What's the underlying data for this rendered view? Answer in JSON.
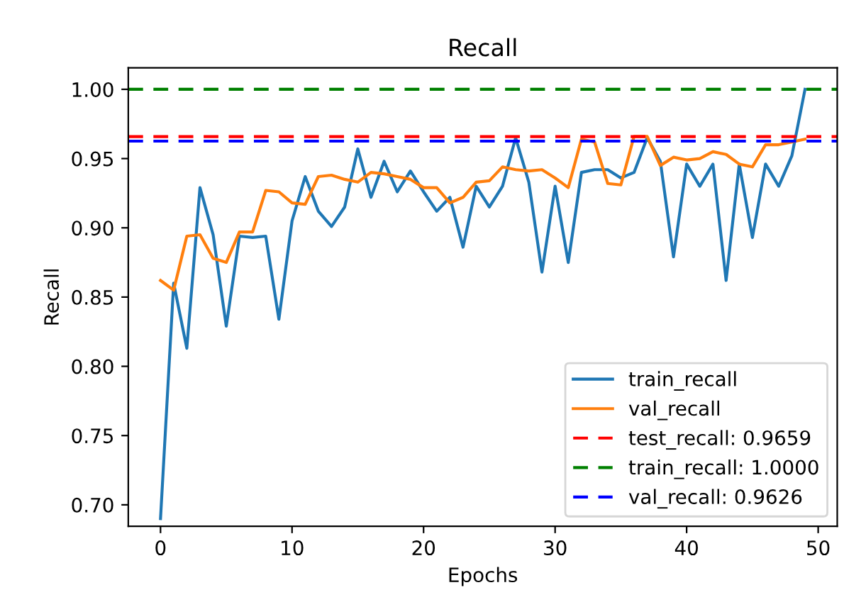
{
  "chart_data": {
    "type": "line",
    "title": "Recall",
    "xlabel": "Epochs",
    "ylabel": "Recall",
    "x": [
      0,
      1,
      2,
      3,
      4,
      5,
      6,
      7,
      8,
      9,
      10,
      11,
      12,
      13,
      14,
      15,
      16,
      17,
      18,
      19,
      20,
      21,
      22,
      23,
      24,
      25,
      26,
      27,
      28,
      29,
      30,
      31,
      32,
      33,
      34,
      35,
      36,
      37,
      38,
      39,
      40,
      41,
      42,
      43,
      44,
      45,
      46,
      47,
      48,
      49
    ],
    "series": [
      {
        "name": "train_recall",
        "color": "#1f77b4",
        "values": [
          0.69,
          0.86,
          0.813,
          0.929,
          0.895,
          0.829,
          0.894,
          0.893,
          0.894,
          0.834,
          0.905,
          0.937,
          0.912,
          0.901,
          0.915,
          0.957,
          0.922,
          0.948,
          0.926,
          0.941,
          0.926,
          0.912,
          0.922,
          0.886,
          0.93,
          0.915,
          0.93,
          0.965,
          0.933,
          0.868,
          0.93,
          0.875,
          0.94,
          0.942,
          0.942,
          0.936,
          0.94,
          0.965,
          0.948,
          0.879,
          0.946,
          0.93,
          0.946,
          0.862,
          0.946,
          0.893,
          0.946,
          0.93,
          0.952,
          1.0
        ]
      },
      {
        "name": "val_recall",
        "color": "#ff7f0e",
        "values": [
          0.862,
          0.855,
          0.894,
          0.895,
          0.878,
          0.875,
          0.897,
          0.897,
          0.927,
          0.926,
          0.918,
          0.917,
          0.937,
          0.938,
          0.935,
          0.933,
          0.94,
          0.939,
          0.937,
          0.935,
          0.929,
          0.929,
          0.918,
          0.922,
          0.933,
          0.934,
          0.944,
          0.942,
          0.941,
          0.942,
          0.936,
          0.929,
          0.964,
          0.962,
          0.932,
          0.931,
          0.966,
          0.966,
          0.945,
          0.951,
          0.949,
          0.95,
          0.955,
          0.953,
          0.946,
          0.944,
          0.96,
          0.96,
          0.962,
          0.964
        ]
      }
    ],
    "ref_lines": [
      {
        "axis": "y",
        "value": 0.9659,
        "label": "test_recall: 0.9659",
        "color": "#ff0000",
        "line_style": "dashed"
      },
      {
        "axis": "y",
        "value": 1.0,
        "label": "train_recall: 1.0000",
        "color": "#008000",
        "line_style": "dashed"
      },
      {
        "axis": "y",
        "value": 0.9626,
        "label": "val_recall: 0.9626",
        "color": "#0000ff",
        "line_style": "dashed"
      }
    ],
    "xlim": [
      -2.45,
      51.45
    ],
    "ylim": [
      0.6845,
      1.0155
    ],
    "xticks": [
      0,
      10,
      20,
      30,
      40,
      50
    ],
    "yticks": [
      {
        "value": 0.7,
        "label": "0.70"
      },
      {
        "value": 0.75,
        "label": "0.75"
      },
      {
        "value": 0.8,
        "label": "0.80"
      },
      {
        "value": 0.85,
        "label": "0.85"
      },
      {
        "value": 0.9,
        "label": "0.90"
      },
      {
        "value": 0.95,
        "label": "0.95"
      },
      {
        "value": 1.0,
        "label": "1.00"
      }
    ],
    "grid": false,
    "legend": "lower right"
  }
}
